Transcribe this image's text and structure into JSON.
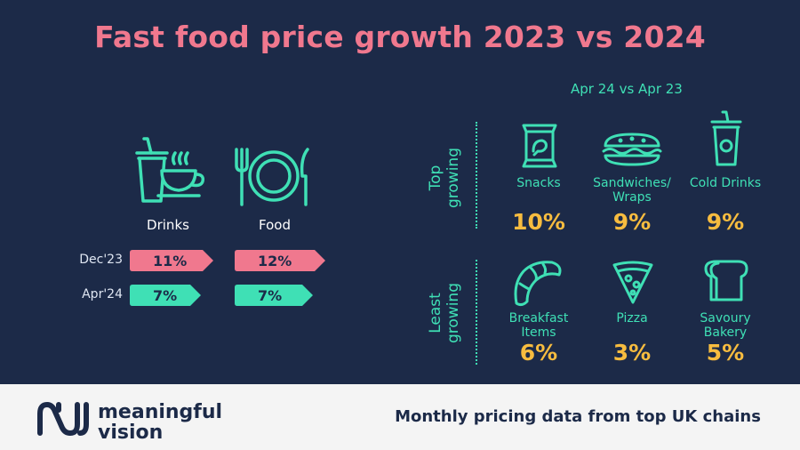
{
  "title": "Fast food price growth 2023 vs 2024",
  "colors": {
    "background": "#1c2a48",
    "title": "#f0788e",
    "accent": "#3fe0b5",
    "value": "#f7bc3f",
    "dec_tag": "#f0788e",
    "apr_tag": "#3fe0b5",
    "footer_bg": "#f4f4f4"
  },
  "chart_data": [
    {
      "type": "table",
      "title": "Fast food price growth 2023 vs 2024",
      "categories": [
        "Drinks",
        "Food"
      ],
      "series": [
        {
          "name": "Dec'23",
          "values": [
            11,
            12
          ],
          "labels": [
            "11%",
            "12%"
          ]
        },
        {
          "name": "Apr'24",
          "values": [
            7,
            7
          ],
          "labels": [
            "7%",
            "7%"
          ]
        }
      ],
      "icons": [
        "drinks-icon",
        "food-icon"
      ]
    },
    {
      "type": "table",
      "title": "Apr 24 vs Apr 23",
      "groups": [
        {
          "name_lines": [
            "Top",
            "growing"
          ],
          "items": [
            {
              "label_lines": [
                "Snacks"
              ],
              "value": 10,
              "value_label": "10%",
              "icon": "snack-bag-icon"
            },
            {
              "label_lines": [
                "Sandwiches/",
                "Wraps"
              ],
              "value": 9,
              "value_label": "9%",
              "icon": "sandwich-icon"
            },
            {
              "label_lines": [
                "Cold Drinks"
              ],
              "value": 9,
              "value_label": "9%",
              "icon": "cold-drink-icon"
            }
          ]
        },
        {
          "name_lines": [
            "Least",
            "growing"
          ],
          "items": [
            {
              "label_lines": [
                "Breakfast",
                "Items"
              ],
              "value": 6,
              "value_label": "6%",
              "icon": "croissant-icon"
            },
            {
              "label_lines": [
                "Pizza"
              ],
              "value": 3,
              "value_label": "3%",
              "icon": "pizza-icon"
            },
            {
              "label_lines": [
                "Savoury",
                "Bakery"
              ],
              "value": 5,
              "value_label": "5%",
              "icon": "bread-icon"
            }
          ]
        }
      ]
    }
  ],
  "footer": {
    "logo_lines": [
      "meaningful",
      "vision"
    ],
    "logo_icon": "meaningful-vision-logo-icon",
    "tagline": "Monthly pricing data from top UK chains"
  }
}
